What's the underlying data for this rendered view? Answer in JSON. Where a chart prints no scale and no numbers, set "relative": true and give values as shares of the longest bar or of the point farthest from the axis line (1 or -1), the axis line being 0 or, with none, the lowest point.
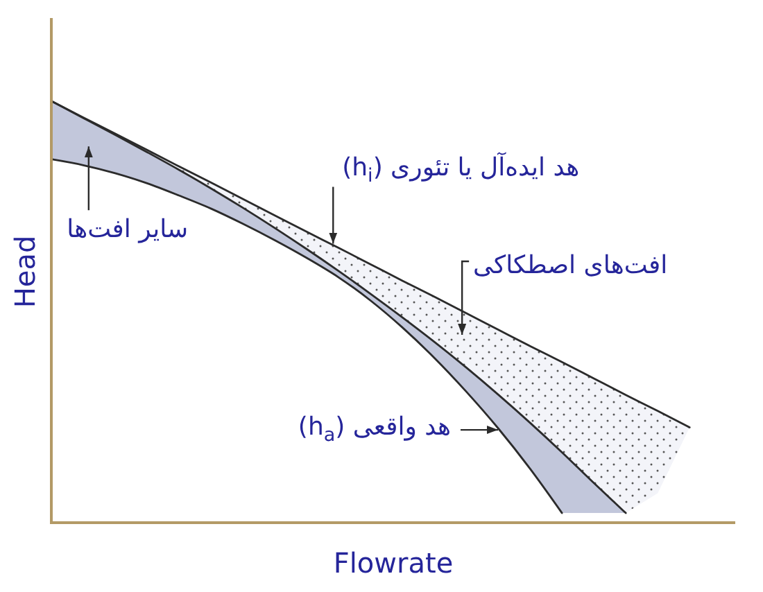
{
  "chart_data": {
    "type": "line",
    "relative": true,
    "xlabel": "Flowrate",
    "ylabel": "Head",
    "categories": [
      null,
      null,
      null,
      null,
      null,
      null,
      null,
      null,
      null,
      null,
      null,
      null,
      null,
      null,
      null,
      null,
      null,
      null,
      null,
      null,
      null
    ],
    "series": [
      {
        "name": "هد ایده‌آل یا تئوری (h$_{i}$)",
        "color": "#2b2b2b",
        "values": [
          1.0,
          0.961,
          0.923,
          0.884,
          0.845,
          0.807,
          0.768,
          0.729,
          0.69,
          0.652,
          0.613,
          0.574,
          0.536,
          0.497,
          0.458,
          0.419,
          0.381,
          0.342,
          0.303,
          0.265,
          0.226
        ],
        "upper": [
          1.0,
          0.961,
          0.923,
          0.884,
          0.845,
          0.807,
          0.768,
          0.729,
          0.69,
          0.652,
          0.613,
          0.574,
          0.536,
          0.497,
          0.458,
          0.419,
          0.381,
          0.342,
          0.303,
          0.265,
          0.226
        ],
        "lower": [
          1.0,
          0.96,
          0.92,
          0.879,
          0.837,
          0.793,
          0.747,
          0.699,
          0.649,
          0.597,
          0.543,
          0.487,
          0.429,
          0.368,
          0.304,
          0.237,
          0.167,
          0.094,
          0.023,
          0.07,
          0.226
        ]
      },
      {
        "color": "#2b2b2b",
        "values": [
          1.0,
          0.96,
          0.92,
          0.879,
          0.837,
          0.793,
          0.747,
          0.699,
          0.649,
          0.597,
          0.543,
          0.487,
          0.429,
          0.368,
          0.304,
          0.237,
          0.167,
          0.094,
          0.023,
          null,
          null
        ],
        "upper": [
          1.0,
          0.96,
          0.92,
          0.879,
          0.837,
          0.793,
          0.747,
          0.699,
          0.649,
          0.597,
          0.543,
          0.487,
          0.429,
          0.368,
          0.304,
          0.237,
          0.167,
          0.094,
          0.023,
          null,
          null
        ],
        "lower": [
          0.862,
          0.848,
          0.829,
          0.805,
          0.776,
          0.745,
          0.709,
          0.67,
          0.628,
          0.582,
          0.527,
          0.463,
          0.391,
          0.311,
          0.224,
          0.128,
          0.023,
          0.023,
          0.023,
          null,
          null
        ]
      },
      {
        "name": "هد واقعی (h$_{a}$)",
        "color": "#2b2b2b",
        "values": [
          0.862,
          0.848,
          0.829,
          0.805,
          0.776,
          0.745,
          0.709,
          0.67,
          0.628,
          0.582,
          0.527,
          0.463,
          0.391,
          0.311,
          0.224,
          0.128,
          0.023,
          null,
          null,
          null,
          null
        ]
      }
    ],
    "annotations": [
      "افت‌های اصطکاکی",
      "سایر افت‌ها"
    ]
  }
}
